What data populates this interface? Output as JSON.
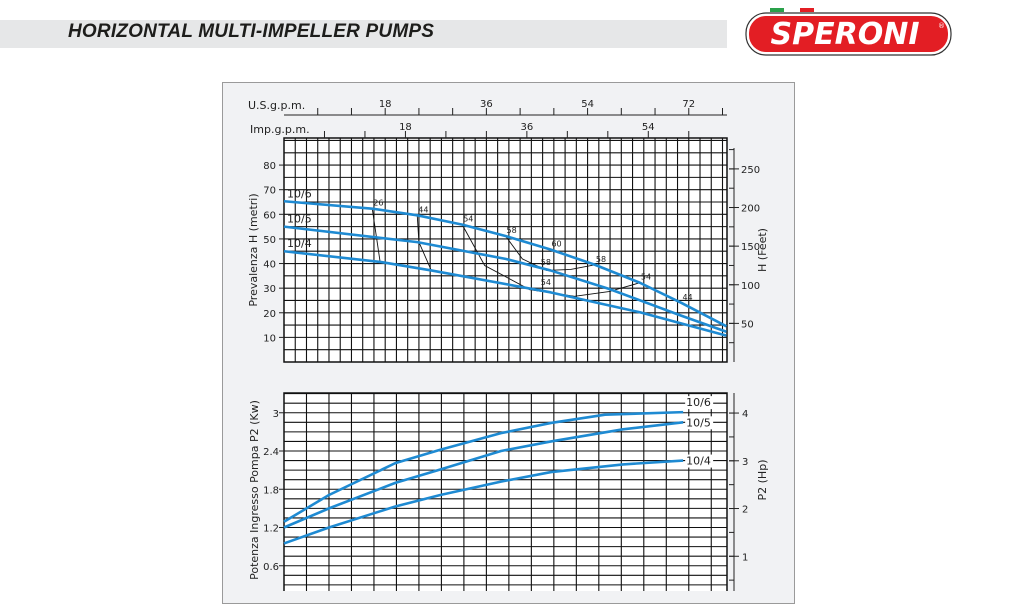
{
  "header": {
    "title": "HORIZONTAL MULTI-IMPELLER PUMPS",
    "logo_text": "SPERONI",
    "logo_mark": "®"
  },
  "colors": {
    "curve": "#1e8ad2",
    "logo_red": "#e31e24",
    "flag_green": "#2aa14b",
    "band": "#e6e7e8"
  },
  "chart_data": [
    {
      "type": "line",
      "title": "",
      "xlabel": "U.S.g.p.m.",
      "x2label": "Imp.g.p.m.",
      "xlim": [
        0,
        78.8
      ],
      "xticks": [
        18,
        36,
        54,
        72
      ],
      "x2ticks": [
        18,
        36,
        54
      ],
      "ylabel": "Prevalenza H (metri)",
      "ylim": [
        0,
        91
      ],
      "yticks": [
        10,
        20,
        30,
        40,
        50,
        60,
        70,
        80
      ],
      "y2label": "H (Feet)",
      "y2lim": [
        0,
        290
      ],
      "y2ticks": [
        50,
        100,
        150,
        200,
        250
      ],
      "grid": true,
      "series": [
        {
          "name": "10/6",
          "x": [
            0,
            15.7,
            23.7,
            31.7,
            39.4,
            47.4,
            55.3,
            63.3,
            70.7,
            78.7
          ],
          "y": [
            65.3,
            62.3,
            59.6,
            55.8,
            51.2,
            45.7,
            39.5,
            32.2,
            24,
            14.5
          ]
        },
        {
          "name": "10/5",
          "x": [
            0,
            23.7,
            39.4,
            47.4,
            57.8,
            70.7,
            78.7
          ],
          "y": [
            55,
            48.7,
            41.9,
            37.2,
            29.7,
            18.8,
            12.3
          ]
        },
        {
          "name": "10/4",
          "x": [
            0,
            17.3,
            26.2,
            47.4,
            63.3,
            78.7
          ],
          "y": [
            45,
            40.6,
            37.2,
            28.3,
            20.2,
            10.7
          ]
        }
      ],
      "efficiency_lines": [
        {
          "x": [
            15.7,
            17.1
          ],
          "y": [
            62.3,
            40.6
          ]
        },
        {
          "x": [
            23.7,
            24,
            26.2
          ],
          "y": [
            59.6,
            48.7,
            37.2
          ]
        },
        {
          "x": [
            31.7,
            35.7,
            43.7,
            51.7,
            57.8,
            63.3
          ],
          "y": [
            55.8,
            39.2,
            29.4,
            26.7,
            28.6,
            32.2
          ]
        },
        {
          "x": [
            39.4,
            42.4,
            46.7,
            51,
            55.3
          ],
          "y": [
            51.2,
            41.9,
            37.2,
            37.6,
            39.5
          ]
        }
      ],
      "annotations": [
        {
          "text": "26",
          "x": 15.7,
          "y": 62.3
        },
        {
          "text": "44",
          "x": 23.7,
          "y": 59.6
        },
        {
          "text": "54",
          "x": 31.7,
          "y": 55.8
        },
        {
          "text": "58",
          "x": 39.4,
          "y": 51.2
        },
        {
          "text": "60",
          "x": 47.4,
          "y": 45.7
        },
        {
          "text": "58",
          "x": 55.3,
          "y": 39.5
        },
        {
          "text": "58",
          "x": 45.5,
          "y": 38.2
        },
        {
          "text": "54",
          "x": 45.5,
          "y": 30.0
        },
        {
          "text": "54",
          "x": 63.3,
          "y": 32.2
        },
        {
          "text": "44",
          "x": 70.7,
          "y": 24
        }
      ]
    },
    {
      "type": "line",
      "title": "",
      "xlim": [
        0,
        78.8
      ],
      "ylabel": "Potenza Ingresso Pompa P2 (Kw)",
      "ylim": [
        0,
        3.31
      ],
      "yticks": [
        0.6,
        1.2,
        1.8,
        2.4,
        3
      ],
      "ytick_labels": [
        "0.6",
        "1.2",
        "1.8",
        "2.4",
        "3"
      ],
      "y2label": "P2 (Hp)",
      "y2lim": [
        0,
        4.42
      ],
      "y2ticks": [
        1,
        2,
        3,
        4
      ],
      "grid": true,
      "series": [
        {
          "name": "10/6",
          "x": [
            0,
            8,
            19.8,
            27.8,
            38.6,
            47.5,
            57.1,
            71
          ],
          "y": [
            1.29,
            1.71,
            2.21,
            2.42,
            2.68,
            2.84,
            2.97,
            3.01
          ]
        },
        {
          "name": "10/5",
          "x": [
            0,
            8,
            19.8,
            27.8,
            38.6,
            47.5,
            60.3,
            71
          ],
          "y": [
            1.2,
            1.5,
            1.9,
            2.11,
            2.4,
            2.55,
            2.74,
            2.85
          ]
        },
        {
          "name": "10/4",
          "x": [
            0,
            8,
            19.8,
            27.8,
            38.6,
            47.5,
            60.3,
            71
          ],
          "y": [
            0.95,
            1.2,
            1.53,
            1.71,
            1.92,
            2.07,
            2.19,
            2.25
          ]
        }
      ]
    }
  ]
}
